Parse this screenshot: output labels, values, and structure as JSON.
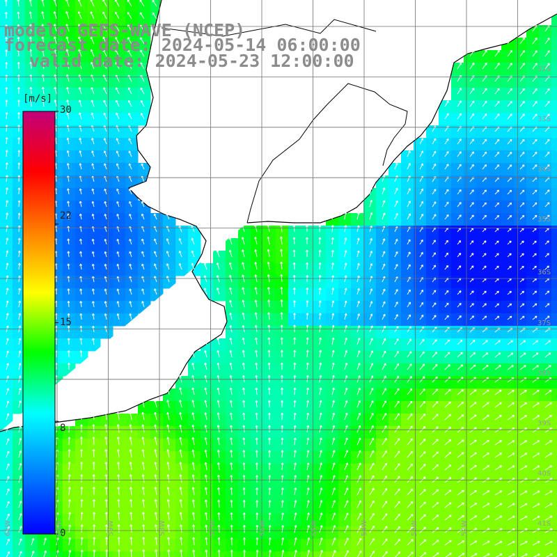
{
  "title": {
    "model": "modelo GEFS-WAVE (NCEP)",
    "forecast": "forecast date: 2024-05-14 06:00:00",
    "valid": "valid date: 2024-05-23 12:00:00"
  },
  "colorbar": {
    "unit": "[m/s]",
    "ticks": [
      {
        "value": 30,
        "label": "30"
      },
      {
        "value": 22,
        "label": "22"
      },
      {
        "value": 15,
        "label": "15"
      },
      {
        "value": 8,
        "label": "8"
      },
      {
        "value": 0,
        "label": "0"
      }
    ],
    "colors": [
      "#0000ff",
      "#0080ff",
      "#00ffff",
      "#00ff00",
      "#ffff00",
      "#ff8000",
      "#ff0000",
      "#c0007a"
    ]
  },
  "lat_labels": [
    "32S",
    "33S",
    "34S",
    "35S",
    "36S",
    "37S",
    "38S",
    "39S",
    "40S",
    "41S"
  ],
  "lon_labels": [
    "61W",
    "60W",
    "59W",
    "58W",
    "57W",
    "56W",
    "55W",
    "54W",
    "53W",
    "52W"
  ],
  "colors": {
    "land": "#ffffff",
    "coast": "#000000",
    "grid": "#6e6e6e",
    "arrow": "#ffffff",
    "title_text": "#8c8c8c"
  }
}
